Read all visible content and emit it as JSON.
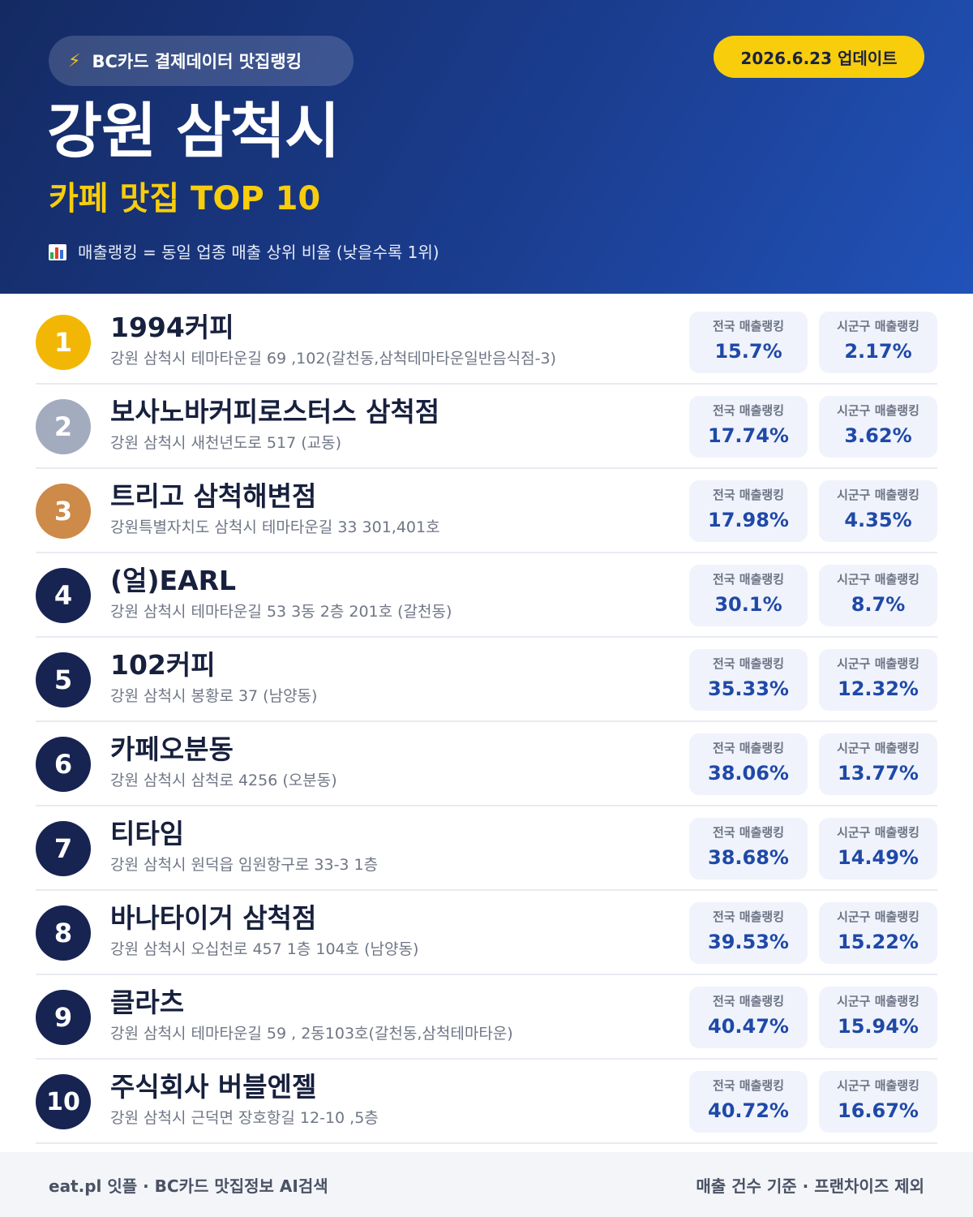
{
  "header": {
    "source_label": "BC카드 결제데이터 맛집랭킹",
    "update_label": "2026.6.23 업데이트",
    "title": "강원 삼척시",
    "subtitle": "카페 맛집 TOP 10",
    "note": "매출랭킹 = 동일 업종 매출 상위 비율 (낮을수록 1위)",
    "colors": {
      "bg_start": "#142a63",
      "bg_end": "#2152b8",
      "accent": "#f8cd0b"
    }
  },
  "icons": {
    "source": "lightning-icon",
    "note": "bar-chart-icon"
  },
  "stat_labels": {
    "national": "전국 매출랭킹",
    "local": "시군구 매출랭킹"
  },
  "badge_colors": {
    "gold": "#f2b705",
    "silver": "#a3acbe",
    "bronze": "#cd8a48",
    "default": "#172452"
  },
  "items": [
    {
      "rank": "1",
      "name": "1994커피",
      "address": "강원 삼척시 테마타운길 69 ,102(갈천동,삼척테마타운일반음식점-3)",
      "national": "15.7%",
      "local": "2.17%",
      "badge": "gold"
    },
    {
      "rank": "2",
      "name": "보사노바커피로스터스 삼척점",
      "address": "강원 삼척시 새천년도로 517 (교동)",
      "national": "17.74%",
      "local": "3.62%",
      "badge": "silver"
    },
    {
      "rank": "3",
      "name": "트리고 삼척해변점",
      "address": "강원특별자치도 삼척시 테마타운길 33 301,401호",
      "national": "17.98%",
      "local": "4.35%",
      "badge": "bronze"
    },
    {
      "rank": "4",
      "name": "(얼)EARL",
      "address": "강원 삼척시 테마타운길 53 3동 2층 201호 (갈천동)",
      "national": "30.1%",
      "local": "8.7%",
      "badge": "default"
    },
    {
      "rank": "5",
      "name": "102커피",
      "address": "강원 삼척시 봉황로 37 (남양동)",
      "national": "35.33%",
      "local": "12.32%",
      "badge": "default"
    },
    {
      "rank": "6",
      "name": "카페오분동",
      "address": "강원 삼척시 삼척로 4256 (오분동)",
      "national": "38.06%",
      "local": "13.77%",
      "badge": "default"
    },
    {
      "rank": "7",
      "name": "티타임",
      "address": "강원 삼척시 원덕읍 임원항구로 33-3 1층",
      "national": "38.68%",
      "local": "14.49%",
      "badge": "default"
    },
    {
      "rank": "8",
      "name": "바나타이거 삼척점",
      "address": "강원 삼척시 오십천로 457 1층 104호 (남양동)",
      "national": "39.53%",
      "local": "15.22%",
      "badge": "default"
    },
    {
      "rank": "9",
      "name": "클라츠",
      "address": "강원 삼척시 테마타운길 59 , 2동103호(갈천동,삼척테마타운)",
      "national": "40.47%",
      "local": "15.94%",
      "badge": "default"
    },
    {
      "rank": "10",
      "name": "주식회사 버블엔젤",
      "address": "강원 삼척시 근덕면 장호항길 12-10 ,5층",
      "national": "40.72%",
      "local": "16.67%",
      "badge": "default"
    }
  ],
  "footer": {
    "left": "eat.pl 잇플 · BC카드 맛집정보 AI검색",
    "right": "매출 건수 기준 · 프랜차이즈 제외"
  }
}
